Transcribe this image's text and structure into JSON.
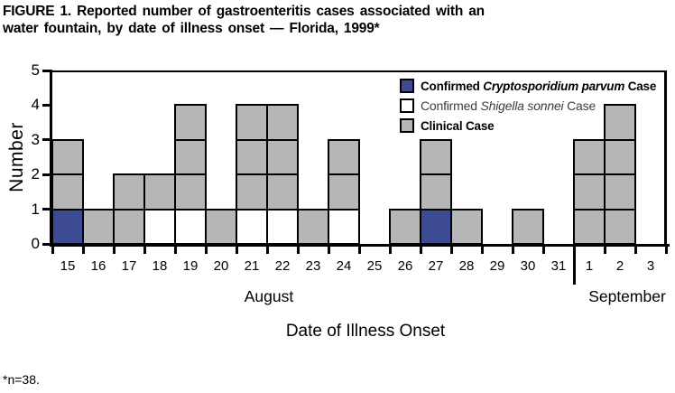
{
  "title": {
    "line1": "FIGURE 1. Reported number of gastroenteritis cases associated with an",
    "line2": "water fountain, by date of illness onset — Florida, 1999*"
  },
  "footnote": "*n=38.",
  "colors": {
    "crypto": "#3D4A94",
    "shigella": "#FFFFFF",
    "clinical": "#B5B6B8",
    "axis": "#000000"
  },
  "chart_data": {
    "type": "bar",
    "stacked": true,
    "note": "epidemic curve; each square = 1 case",
    "ylabel": "Number",
    "xlabel": "Date of Illness Onset",
    "ylim": [
      0,
      5
    ],
    "yticks": [
      "0",
      "1",
      "2",
      "3",
      "4",
      "5"
    ],
    "months": [
      {
        "label": "August",
        "days": [
          "15",
          "16",
          "17",
          "18",
          "19",
          "20",
          "21",
          "22",
          "23",
          "24",
          "25",
          "26",
          "27",
          "28",
          "29",
          "30",
          "31"
        ]
      },
      {
        "label": "September",
        "days": [
          "1",
          "2",
          "3"
        ]
      }
    ],
    "legend": [
      {
        "key": "crypto",
        "bold": true,
        "parts": [
          {
            "t": "Confirmed ",
            "i": false
          },
          {
            "t": "Cryptosporidium parvum",
            "i": true
          },
          {
            "t": " Case",
            "i": false
          }
        ]
      },
      {
        "key": "shigella",
        "bold": false,
        "parts": [
          {
            "t": "Confirmed ",
            "i": false
          },
          {
            "t": "Shigella sonnei",
            "i": true
          },
          {
            "t": " Case",
            "i": false
          }
        ]
      },
      {
        "key": "clinical",
        "bold": true,
        "parts": [
          {
            "t": "Clinical Case",
            "i": false
          }
        ]
      }
    ],
    "columns": [
      {
        "month": "August",
        "day": "15",
        "stack": [
          "crypto",
          "clinical",
          "clinical"
        ]
      },
      {
        "month": "August",
        "day": "16",
        "stack": [
          "clinical"
        ]
      },
      {
        "month": "August",
        "day": "17",
        "stack": [
          "clinical",
          "clinical"
        ]
      },
      {
        "month": "August",
        "day": "18",
        "stack": [
          "shigella",
          "clinical"
        ]
      },
      {
        "month": "August",
        "day": "19",
        "stack": [
          "shigella",
          "clinical",
          "clinical",
          "clinical"
        ]
      },
      {
        "month": "August",
        "day": "20",
        "stack": [
          "clinical"
        ]
      },
      {
        "month": "August",
        "day": "21",
        "stack": [
          "shigella",
          "clinical",
          "clinical",
          "clinical"
        ]
      },
      {
        "month": "August",
        "day": "22",
        "stack": [
          "shigella",
          "clinical",
          "clinical",
          "clinical"
        ]
      },
      {
        "month": "August",
        "day": "23",
        "stack": [
          "clinical"
        ]
      },
      {
        "month": "August",
        "day": "24",
        "stack": [
          "shigella",
          "clinical",
          "clinical"
        ]
      },
      {
        "month": "August",
        "day": "25",
        "stack": []
      },
      {
        "month": "August",
        "day": "26",
        "stack": [
          "clinical"
        ]
      },
      {
        "month": "August",
        "day": "27",
        "stack": [
          "crypto",
          "clinical",
          "clinical"
        ]
      },
      {
        "month": "August",
        "day": "28",
        "stack": [
          "clinical"
        ]
      },
      {
        "month": "August",
        "day": "29",
        "stack": []
      },
      {
        "month": "August",
        "day": "30",
        "stack": [
          "clinical"
        ]
      },
      {
        "month": "August",
        "day": "31",
        "stack": []
      },
      {
        "month": "September",
        "day": "1",
        "stack": [
          "clinical",
          "clinical",
          "clinical"
        ]
      },
      {
        "month": "September",
        "day": "2",
        "stack": [
          "clinical",
          "clinical",
          "clinical",
          "clinical"
        ]
      },
      {
        "month": "September",
        "day": "3",
        "stack": []
      }
    ]
  }
}
